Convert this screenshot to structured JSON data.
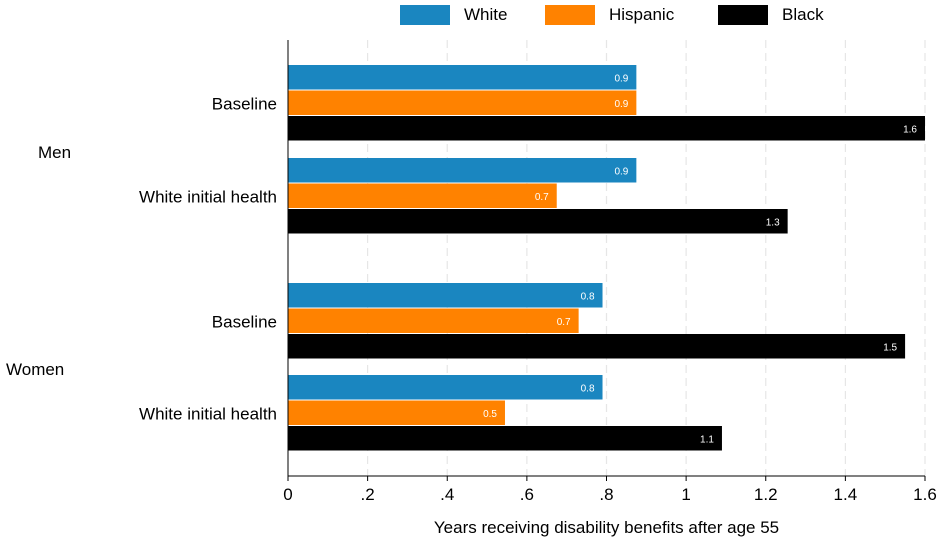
{
  "chart_data": {
    "type": "bar",
    "orientation": "horizontal",
    "xlabel": "Years receiving disability benefits after age 55",
    "xlim": [
      0,
      1.6
    ],
    "xticks": [
      0,
      0.2,
      0.4,
      0.6,
      0.8,
      1.0,
      1.2,
      1.4,
      1.6
    ],
    "xtick_labels": [
      "0",
      ".2",
      ".4",
      ".6",
      ".8",
      "1",
      "1.2",
      "1.4",
      "1.6"
    ],
    "grid": "vertical dashed",
    "legend_position": "top",
    "series": [
      {
        "name": "White",
        "color": "#1a86c0"
      },
      {
        "name": "Hispanic",
        "color": "#ff8200"
      },
      {
        "name": "Black",
        "color": "#000000"
      }
    ],
    "groups": [
      {
        "label": "Men",
        "categories": [
          {
            "label": "Baseline",
            "values": [
              0.875,
              0.875,
              1.6
            ],
            "value_labels": [
              "0.9",
              "0.9",
              "1.6"
            ]
          },
          {
            "label": "White initial health",
            "values": [
              0.875,
              0.675,
              1.255
            ],
            "value_labels": [
              "0.9",
              "0.7",
              "1.3"
            ]
          }
        ]
      },
      {
        "label": "Women",
        "categories": [
          {
            "label": "Baseline",
            "values": [
              0.79,
              0.73,
              1.55
            ],
            "value_labels": [
              "0.8",
              "0.7",
              "1.5"
            ]
          },
          {
            "label": "White initial health",
            "values": [
              0.79,
              0.545,
              1.09
            ],
            "value_labels": [
              "0.8",
              "0.5",
              "1.1"
            ]
          }
        ]
      }
    ]
  }
}
